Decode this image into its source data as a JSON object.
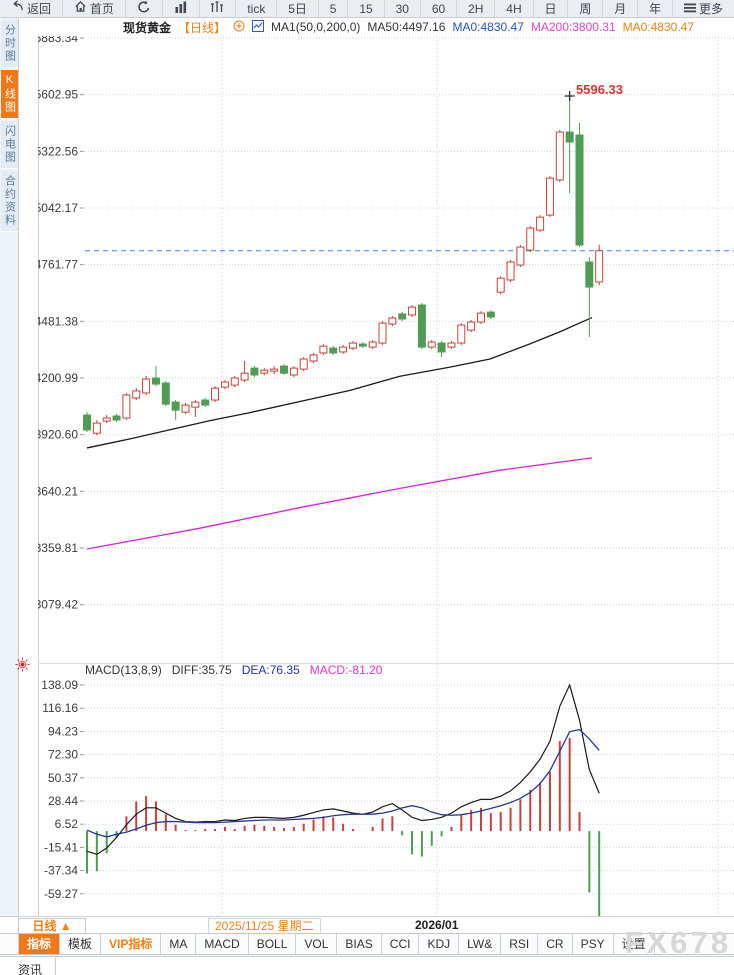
{
  "window": {
    "watermark": "FX678"
  },
  "toolbar": {
    "items": [
      {
        "name": "toolbar-back-button",
        "icon": "back-arrow-icon",
        "label": "返回"
      },
      {
        "name": "toolbar-home-button",
        "icon": "home-icon",
        "label": "首页"
      },
      {
        "name": "toolbar-refresh-button",
        "icon": "refresh-icon",
        "label": ""
      },
      {
        "name": "toolbar-chart-type-bars-button",
        "icon": "bar-chart-icon",
        "label": ""
      },
      {
        "name": "toolbar-chart-type-volume-button",
        "icon": "volume-bars-icon",
        "label": ""
      },
      {
        "name": "toolbar-period-tick",
        "icon": "",
        "label": "tick"
      },
      {
        "name": "toolbar-period-5d",
        "icon": "",
        "label": "5日"
      },
      {
        "name": "toolbar-period-5min",
        "icon": "",
        "label": "5"
      },
      {
        "name": "toolbar-period-15min",
        "icon": "",
        "label": "15"
      },
      {
        "name": "toolbar-period-30min",
        "icon": "",
        "label": "30"
      },
      {
        "name": "toolbar-period-60min",
        "icon": "",
        "label": "60"
      },
      {
        "name": "toolbar-period-2h",
        "icon": "",
        "label": "2H"
      },
      {
        "name": "toolbar-period-4h",
        "icon": "",
        "label": "4H"
      },
      {
        "name": "toolbar-period-day",
        "icon": "",
        "label": "日"
      },
      {
        "name": "toolbar-period-week",
        "icon": "",
        "label": "周"
      },
      {
        "name": "toolbar-period-month",
        "icon": "",
        "label": "月"
      },
      {
        "name": "toolbar-period-year",
        "icon": "",
        "label": "年"
      },
      {
        "name": "toolbar-more-button",
        "icon": "menu-icon",
        "label": "更多"
      }
    ]
  },
  "header": {
    "symbol": "现货黄金",
    "period_tag": "【日线】",
    "ma_settings": "MA1(50,0,200,0)",
    "ma50_label": "MA50:4497.16",
    "ma0_blue_label": "MA0:4830.47",
    "ma200_label": "MA200:3800.31",
    "ma0_orange_label": "MA0:4830.47"
  },
  "sidebar": {
    "items": [
      {
        "name": "sidebar-item-time-chart",
        "label": "分时图",
        "active": false
      },
      {
        "name": "sidebar-item-kline-chart",
        "label": "K线图",
        "active": true
      },
      {
        "name": "sidebar-item-lightning-chart",
        "label": "闪电图",
        "active": false
      },
      {
        "name": "sidebar-item-contract-info",
        "label": "合约资料",
        "active": false
      }
    ]
  },
  "macd_header": {
    "formula": "MACD(13,8,9)",
    "diff_label": "DIFF:35.75",
    "dea_label": "DEA:76.35",
    "macd_label": "MACD:-81.20"
  },
  "annotations": {
    "high_label": "5596.33"
  },
  "xaxis": {
    "period_selector": "日线 ▲",
    "highlight_date": "2025/11/25 星期二",
    "month_label": "2026/01"
  },
  "indicator_bar": {
    "tabs": [
      {
        "name": "tab-indicator",
        "label": "指标",
        "style": "active"
      },
      {
        "name": "tab-template",
        "label": "模板",
        "style": "normal"
      },
      {
        "name": "tab-vip-indicator",
        "label": "VIP指标",
        "style": "vip"
      },
      {
        "name": "tab-ma",
        "label": "MA",
        "style": "normal"
      },
      {
        "name": "tab-macd",
        "label": "MACD",
        "style": "normal"
      },
      {
        "name": "tab-boll",
        "label": "BOLL",
        "style": "normal"
      },
      {
        "name": "tab-vol",
        "label": "VOL",
        "style": "normal"
      },
      {
        "name": "tab-bias",
        "label": "BIAS",
        "style": "normal"
      },
      {
        "name": "tab-cci",
        "label": "CCI",
        "style": "normal"
      },
      {
        "name": "tab-kdj",
        "label": "KDJ",
        "style": "normal"
      },
      {
        "name": "tab-lwr",
        "label": "LW&",
        "style": "normal"
      },
      {
        "name": "tab-rsi",
        "label": "RSI",
        "style": "normal"
      },
      {
        "name": "tab-cr",
        "label": "CR",
        "style": "normal"
      },
      {
        "name": "tab-psy",
        "label": "PSY",
        "style": "normal"
      },
      {
        "name": "tab-settings",
        "label": "设置",
        "style": "normal"
      }
    ]
  },
  "news_tab": {
    "label": "资讯"
  },
  "colors": {
    "accent_orange": "#f07818",
    "up_red": "#c9413a",
    "down_green": "#4f9d53",
    "ma50_black": "#1a1a1a",
    "ma200_magenta": "#e01ee0",
    "dea_blue": "#26379c",
    "price_line_blue": "#3a7fd5"
  },
  "chart_data": [
    {
      "type": "candlestick",
      "symbol": "现货黄金",
      "period": "日线",
      "y_ticks": [
        "5883.34",
        "5602.95",
        "5322.56",
        "5042.17",
        "4761.77",
        "4481.38",
        "4200.99",
        "3920.60",
        "3640.21",
        "3359.81",
        "3079.42"
      ],
      "x_axis_labels": [
        {
          "text": "2025/11/25 星期二",
          "highlighted": true
        },
        {
          "text": "2026/01",
          "highlighted": false
        }
      ],
      "current_price": 4830.47,
      "high_annotation": {
        "index": 49,
        "value": 5596.33
      },
      "grid_x_page": [
        222,
        437,
        718
      ],
      "up_color": "#c9413a",
      "down_color": "#4f9d53",
      "ohlc": [
        [
          4018,
          4032,
          3934,
          3944
        ],
        [
          3928,
          3993,
          3918,
          3978
        ],
        [
          3988,
          4018,
          3978,
          4003
        ],
        [
          4013,
          4023,
          3983,
          3993
        ],
        [
          4003,
          4127,
          3993,
          4117
        ],
        [
          4102,
          4152,
          4092,
          4137
        ],
        [
          4127,
          4211,
          4117,
          4196
        ],
        [
          4201,
          4260,
          4161,
          4171
        ],
        [
          4176,
          4186,
          4062,
          4072
        ],
        [
          4082,
          4092,
          3993,
          4042
        ],
        [
          4032,
          4077,
          4022,
          4067
        ],
        [
          4057,
          4092,
          4008,
          4082
        ],
        [
          4092,
          4102,
          4057,
          4067
        ],
        [
          4092,
          4161,
          4082,
          4151
        ],
        [
          4156,
          4191,
          4146,
          4181
        ],
        [
          4166,
          4211,
          4156,
          4201
        ],
        [
          4191,
          4285,
          4181,
          4225
        ],
        [
          4250,
          4260,
          4206,
          4216
        ],
        [
          4225,
          4250,
          4216,
          4240
        ],
        [
          4235,
          4260,
          4220,
          4245
        ],
        [
          4260,
          4270,
          4216,
          4225
        ],
        [
          4216,
          4260,
          4206,
          4250
        ],
        [
          4245,
          4305,
          4235,
          4295
        ],
        [
          4285,
          4325,
          4275,
          4315
        ],
        [
          4325,
          4369,
          4315,
          4359
        ],
        [
          4349,
          4359,
          4315,
          4325
        ],
        [
          4330,
          4364,
          4320,
          4354
        ],
        [
          4349,
          4384,
          4339,
          4374
        ],
        [
          4369,
          4379,
          4349,
          4359
        ],
        [
          4354,
          4389,
          4344,
          4379
        ],
        [
          4374,
          4483,
          4364,
          4473
        ],
        [
          4468,
          4508,
          4458,
          4498
        ],
        [
          4518,
          4528,
          4483,
          4493
        ],
        [
          4513,
          4562,
          4503,
          4552
        ],
        [
          4562,
          4572,
          4344,
          4354
        ],
        [
          4354,
          4389,
          4344,
          4379
        ],
        [
          4374,
          4384,
          4305,
          4330
        ],
        [
          4354,
          4384,
          4344,
          4374
        ],
        [
          4374,
          4473,
          4364,
          4463
        ],
        [
          4438,
          4488,
          4428,
          4478
        ],
        [
          4478,
          4532,
          4468,
          4522
        ],
        [
          4527,
          4537,
          4493,
          4503
        ],
        [
          4626,
          4705,
          4616,
          4695
        ],
        [
          4686,
          4785,
          4676,
          4775
        ],
        [
          4760,
          4859,
          4750,
          4849
        ],
        [
          4834,
          4953,
          4824,
          4943
        ],
        [
          4933,
          5007,
          4923,
          4997
        ],
        [
          5007,
          5200,
          4997,
          5190
        ],
        [
          5181,
          5428,
          5170,
          5418
        ],
        [
          5418,
          5596.33,
          5116,
          5369
        ],
        [
          5403,
          5463,
          4849,
          4859
        ],
        [
          4775,
          4800,
          4404,
          4651
        ],
        [
          4676,
          4860,
          4660,
          4830.47
        ]
      ],
      "ma_lines": [
        {
          "name": "MA50",
          "latest": 4497.16,
          "color": "#1a1a1a",
          "points": [
            [
              87,
              3855
            ],
            [
              130,
              3900
            ],
            [
              170,
              3945
            ],
            [
              210,
              3990
            ],
            [
              250,
              4030
            ],
            [
              300,
              4085
            ],
            [
              350,
              4140
            ],
            [
              400,
              4210
            ],
            [
              450,
              4255
            ],
            [
              490,
              4295
            ],
            [
              530,
              4370
            ],
            [
              560,
              4430
            ],
            [
              592,
              4500
            ]
          ]
        },
        {
          "name": "MA200",
          "latest": 3800.31,
          "color": "#e01ee0",
          "points": [
            [
              87,
              3355
            ],
            [
              200,
              3458
            ],
            [
              300,
              3560
            ],
            [
              400,
              3655
            ],
            [
              500,
              3745
            ],
            [
              592,
              3806
            ]
          ]
        }
      ]
    },
    {
      "type": "macd",
      "params": [
        13,
        8,
        9
      ],
      "y_ticks": [
        "138.09",
        "116.16",
        "94.23",
        "72.30",
        "50.37",
        "28.44",
        "6.52",
        "-15.41",
        "-37.34",
        "-59.27"
      ],
      "latest": {
        "diff": 35.75,
        "dea": 76.35,
        "macd": -81.2
      },
      "hist_rule": "2*(diff-dea)",
      "diff_color": "#1a1a1a",
      "dea_color": "#26379c",
      "diff": [
        -19,
        -22,
        -16,
        -6,
        6,
        16,
        22,
        22,
        17,
        12,
        9,
        8.5,
        9,
        9,
        10.5,
        10,
        12,
        13,
        13,
        12.5,
        12,
        13,
        15,
        17.5,
        20,
        21,
        19,
        17,
        16,
        18,
        23,
        26,
        20,
        13,
        10,
        11,
        13,
        17,
        23,
        27,
        30,
        30,
        33,
        38,
        46,
        56,
        68,
        85,
        118,
        138.09,
        105,
        58,
        35.75
      ],
      "dea": [
        1,
        -3,
        -5.5,
        -3,
        -1,
        2,
        5.5,
        8,
        9,
        9,
        8.5,
        8,
        8,
        8,
        8.5,
        9,
        9.5,
        10,
        10.5,
        10.5,
        10.5,
        11,
        11.5,
        12,
        13,
        14.5,
        15.5,
        16,
        16,
        16,
        17,
        19,
        22,
        24,
        22,
        18,
        15.5,
        15,
        15.5,
        17,
        19,
        21.5,
        24,
        27,
        31,
        36.5,
        45,
        57,
        75.5,
        94,
        96,
        87,
        76.35
      ]
    }
  ]
}
